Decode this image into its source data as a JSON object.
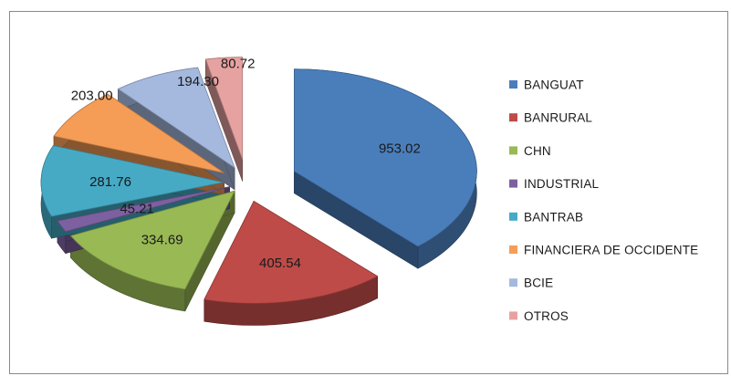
{
  "chart_data": {
    "type": "pie",
    "style": "3d-exploded",
    "categories": [
      "BANGUAT",
      "BANRURAL",
      "CHN",
      "INDUSTRIAL",
      "BANTRAB",
      "FINANCIERA DE OCCIDENTE",
      "BCIE",
      "OTROS"
    ],
    "values": [
      953.02,
      405.54,
      334.69,
      45.21,
      281.76,
      203.0,
      194.3,
      80.72
    ],
    "data_labels": [
      "953.02",
      "405.54",
      "334.69",
      "45.21",
      "281.76",
      "203.00",
      "194.30",
      "80.72"
    ],
    "colors": [
      "#4a7ebb",
      "#be4b48",
      "#98b954",
      "#7d60a0",
      "#46aac5",
      "#f59d56",
      "#a5b9de",
      "#e6a2a1"
    ],
    "legend_position": "right",
    "title": "",
    "grid": false
  }
}
